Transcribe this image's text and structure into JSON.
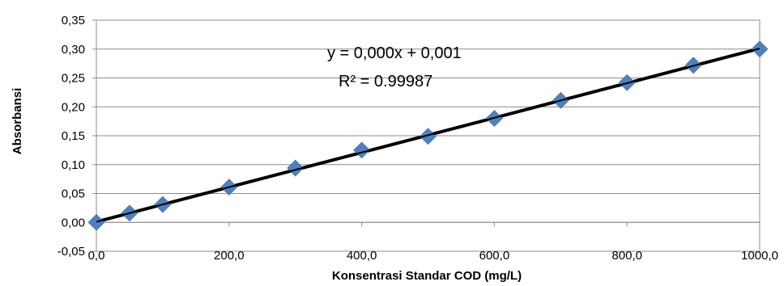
{
  "chart_data": {
    "type": "scatter",
    "title": "",
    "xlabel": "Konsentrasi Standar COD (mg/L)",
    "ylabel": "Absorbansi",
    "xlim": [
      0,
      1000
    ],
    "ylim": [
      -0.05,
      0.35
    ],
    "x_ticks": [
      "0,0",
      "200,0",
      "400,0",
      "600,0",
      "800,0",
      "1000,0"
    ],
    "y_ticks": [
      "-0,05",
      "0,00",
      "0,05",
      "0,10",
      "0,15",
      "0,20",
      "0,25",
      "0,30",
      "0,35"
    ],
    "grid": true,
    "legend": "none",
    "series": [
      {
        "x": [
          0,
          50,
          100,
          200,
          300,
          400,
          500,
          600,
          700,
          800,
          900,
          1000
        ],
        "y": [
          0.0,
          0.016,
          0.031,
          0.061,
          0.094,
          0.125,
          0.149,
          0.18,
          0.211,
          0.242,
          0.272,
          0.3
        ],
        "marker": "diamond",
        "color": "#4F81BD"
      }
    ],
    "trendline": {
      "type": "linear",
      "x": [
        0,
        1000
      ],
      "y": [
        0.001,
        0.301
      ],
      "color": "#000000",
      "equation": "y = 0,000x + 0,001",
      "r_squared": "R² = 0.99987"
    }
  }
}
